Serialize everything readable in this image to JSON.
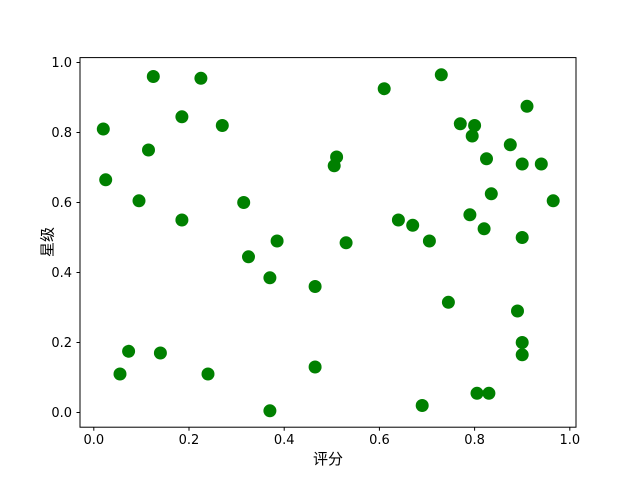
{
  "figure": {
    "background": "#ffffff",
    "frame_color": "#000000"
  },
  "chart_data": {
    "type": "scatter",
    "title": "",
    "xlabel": "评分",
    "ylabel": "星级",
    "legend": null,
    "grid": false,
    "marker_color": "#008000",
    "marker_diameter_px": 13,
    "x_ticks": [
      0.0,
      0.2,
      0.4,
      0.6,
      0.8,
      1.0
    ],
    "y_ticks": [
      0.0,
      0.2,
      0.4,
      0.6,
      0.8,
      1.0
    ],
    "xlim": [
      -0.029,
      1.013
    ],
    "ylim": [
      -0.042,
      1.014
    ],
    "points": [
      [
        0.125,
        0.96
      ],
      [
        0.225,
        0.955
      ],
      [
        0.185,
        0.845
      ],
      [
        0.02,
        0.81
      ],
      [
        0.27,
        0.82
      ],
      [
        0.115,
        0.75
      ],
      [
        0.025,
        0.665
      ],
      [
        0.095,
        0.605
      ],
      [
        0.185,
        0.55
      ],
      [
        0.315,
        0.6
      ],
      [
        0.61,
        0.925
      ],
      [
        0.51,
        0.73
      ],
      [
        0.505,
        0.705
      ],
      [
        0.385,
        0.49
      ],
      [
        0.53,
        0.485
      ],
      [
        0.64,
        0.55
      ],
      [
        0.67,
        0.535
      ],
      [
        0.73,
        0.965
      ],
      [
        0.91,
        0.875
      ],
      [
        0.77,
        0.825
      ],
      [
        0.8,
        0.82
      ],
      [
        0.795,
        0.79
      ],
      [
        0.875,
        0.765
      ],
      [
        0.825,
        0.725
      ],
      [
        0.9,
        0.71
      ],
      [
        0.94,
        0.71
      ],
      [
        0.835,
        0.625
      ],
      [
        0.965,
        0.605
      ],
      [
        0.79,
        0.565
      ],
      [
        0.82,
        0.525
      ],
      [
        0.9,
        0.5
      ],
      [
        0.705,
        0.49
      ],
      [
        0.325,
        0.445
      ],
      [
        0.073,
        0.175
      ],
      [
        0.14,
        0.17
      ],
      [
        0.055,
        0.11
      ],
      [
        0.24,
        0.11
      ],
      [
        0.37,
        0.385
      ],
      [
        0.465,
        0.36
      ],
      [
        0.465,
        0.13
      ],
      [
        0.37,
        0.005
      ],
      [
        0.745,
        0.315
      ],
      [
        0.89,
        0.29
      ],
      [
        0.9,
        0.2
      ],
      [
        0.9,
        0.165
      ],
      [
        0.805,
        0.055
      ],
      [
        0.83,
        0.055
      ],
      [
        0.69,
        0.02
      ]
    ]
  }
}
